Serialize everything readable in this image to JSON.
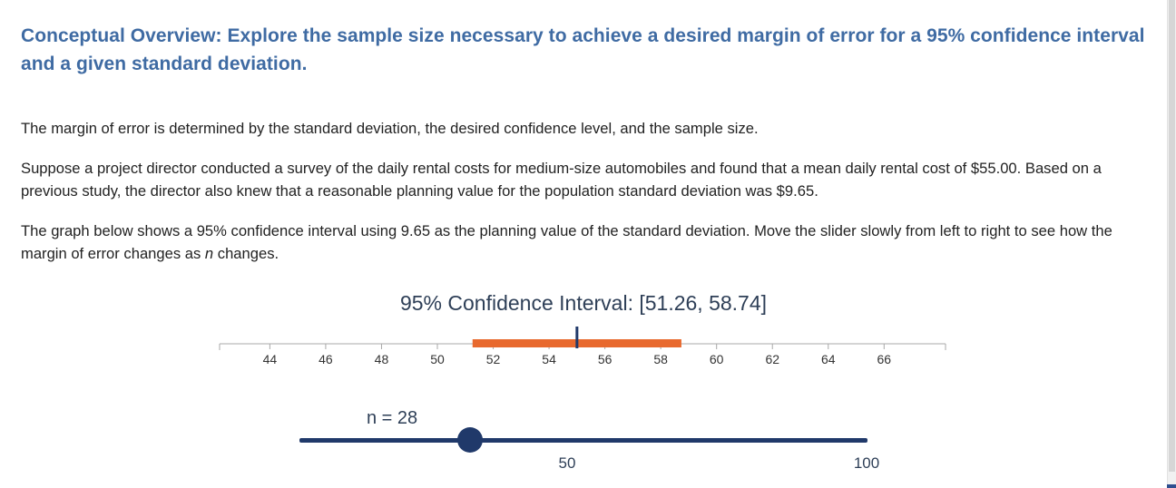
{
  "overview": {
    "title": "Conceptual Overview: Explore the sample size necessary to achieve a desired margin of error for a 95% confidence interval and a given standard deviation."
  },
  "paragraphs": {
    "p1": "The margin of error is determined by the standard deviation, the desired confidence level, and the sample size.",
    "p2": "Suppose a project director conducted a survey of the daily rental costs for medium-size automobiles and found that a mean daily rental cost of $55.00. Based on a previous study, the director also knew that a reasonable planning value for the population standard deviation was $9.65.",
    "p3_before": "The graph below shows a 95% confidence interval using 9.65 as the planning value of the standard deviation. Move the slider slowly from left to right to see how the margin of error changes as ",
    "p3_var": "n",
    "p3_after": " changes."
  },
  "ci": {
    "title": "95% Confidence Interval: [51.26, 58.74]",
    "mean": 55.0,
    "lower": 51.26,
    "upper": 58.74
  },
  "axis": {
    "min": 42.2,
    "max": 68.2,
    "ticks": [
      44,
      46,
      48,
      50,
      52,
      54,
      56,
      58,
      60,
      62,
      64,
      66
    ]
  },
  "slider": {
    "label": "n = 28",
    "value": 28,
    "min": 0,
    "max": 100,
    "tick_labels": [
      "50",
      "100"
    ]
  },
  "colors": {
    "title": "#3f6ba3",
    "interval": "#e8692e",
    "mean_marker": "#20396a",
    "slider": "#20396a",
    "axis": "#999999",
    "label": "#2e3f57"
  }
}
